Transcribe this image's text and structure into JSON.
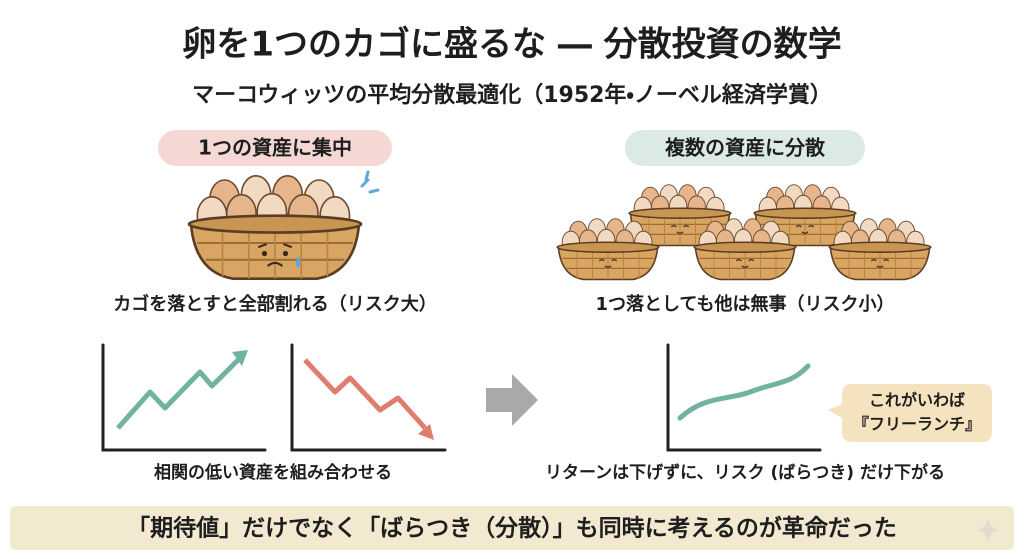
{
  "header": {
    "title": "卵を1つのカゴに盛るな ― 分散投資の数学",
    "subtitle": "マーコウィッツの平均分散最適化（1952年・ノーベル経済学賞）"
  },
  "left": {
    "label": "1つの資産に集中",
    "caption": "カゴを落とすと全部割れる（リスク大）",
    "chart_caption": "相関の低い資産を組み合わせる"
  },
  "right": {
    "label": "複数の資産に分散",
    "caption": "1つ落としても他は無事（リスク小）",
    "chart_caption": "リターンは下げずに、リスク (ばらつき) だけ下がる",
    "callout": [
      "これがいわば",
      "『フリーランチ』"
    ]
  },
  "footer": {
    "text": "「期待値」だけでなく「ばらつき（分散）」も同時に考えるのが革命だった"
  }
}
